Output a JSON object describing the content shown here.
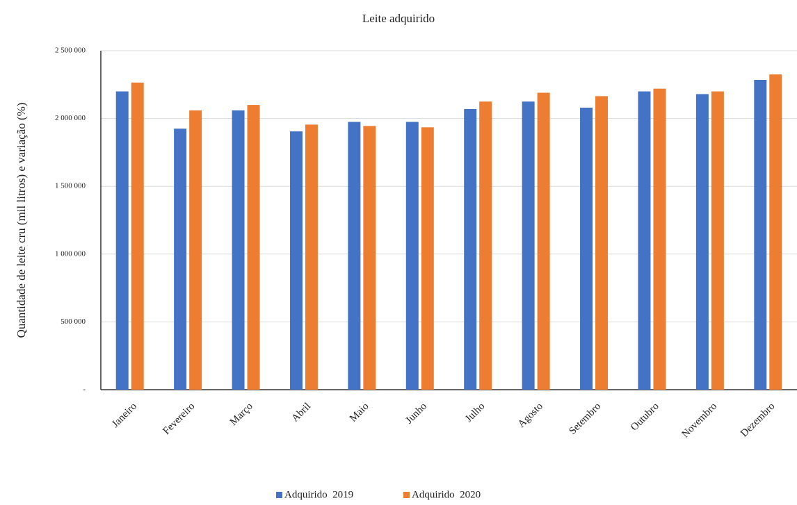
{
  "chart_data": {
    "type": "bar",
    "title": "Leite adquirido",
    "y_label": "Quantidade de leite cru (mil litros) e variação (%)",
    "categories": [
      "Janeiro",
      "Fevereiro",
      "Março",
      "Abril",
      "Maio",
      "Junho",
      "Julho",
      "Agosto",
      "Setembro",
      "Outubro",
      "Novembro",
      "Dezembro"
    ],
    "series": [
      {
        "name": "Adquirido  2019",
        "color": "#4472c4",
        "values": [
          2200000,
          1925000,
          2060000,
          1905000,
          1975000,
          1975000,
          2070000,
          2125000,
          2080000,
          2200000,
          2180000,
          2285000
        ]
      },
      {
        "name": "Adquirido  2020",
        "color": "#ed7d31",
        "values": [
          2265000,
          2060000,
          2100000,
          1955000,
          1945000,
          1935000,
          2125000,
          2190000,
          2165000,
          2220000,
          2200000,
          2325000
        ]
      }
    ],
    "ylim": [
      0,
      2500000
    ],
    "yticks": [
      {
        "value": 0,
        "label": "-"
      },
      {
        "value": 500000,
        "label": "500 000"
      },
      {
        "value": 1000000,
        "label": "1 000 000"
      },
      {
        "value": 1500000,
        "label": "1 500 000"
      },
      {
        "value": 2000000,
        "label": "2 000 000"
      },
      {
        "value": 2500000,
        "label": "2 500 000"
      }
    ],
    "grid": true,
    "legend": "bottom"
  }
}
